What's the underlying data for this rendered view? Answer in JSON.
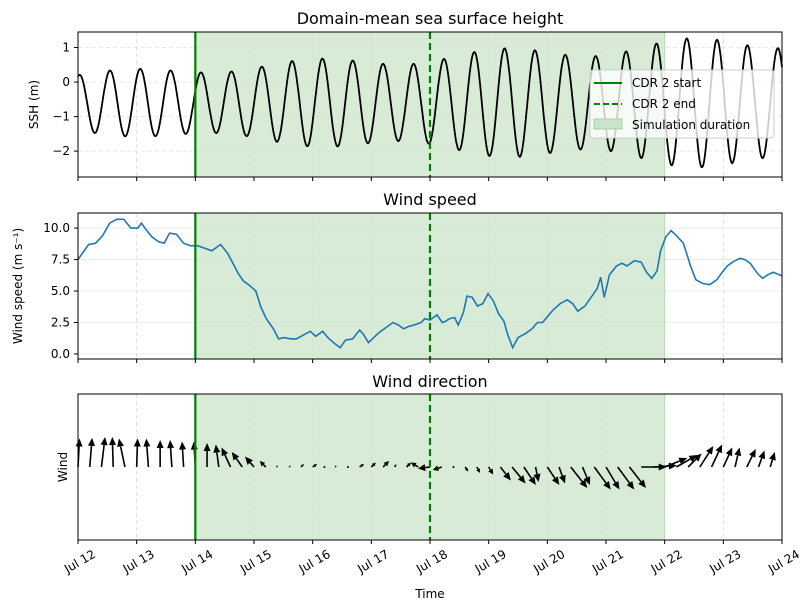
{
  "chart_data": [
    {
      "type": "line",
      "title": "Domain-mean sea surface height",
      "xlabel": "",
      "ylabel": "SSH (m)",
      "x_range": [
        "Jul 12",
        "Jul 24"
      ],
      "ylim": [
        -2.75,
        1.45
      ],
      "yticks": [
        1,
        0,
        -1,
        -2
      ],
      "ytick_labels": [
        "1",
        "0",
        "−1",
        "−2"
      ],
      "grid": true,
      "tide": {
        "mean": -0.6,
        "period_hours": 12.42,
        "amplitude_start": 0.8,
        "amplitude_end": 1.8
      },
      "series": [
        {
          "name": "",
          "color": "#000000",
          "description_values": "semi-diurnal oscillation, SSH range approx -1.65..0.10 on Jul 12 growing to approx -2.45..1.25 by Jul 24"
        }
      ],
      "markers": {
        "cdr2_start": "Jul 14",
        "cdr2_end": "Jul 18",
        "simulation_start": "Jul 14",
        "simulation_end": "Jul 22"
      },
      "legend": {
        "position": "upper-right",
        "entries": [
          {
            "label": "CDR 2 start",
            "style": "solid",
            "color": "#008000"
          },
          {
            "label": "CDR 2 end",
            "style": "dashed",
            "color": "#008000"
          },
          {
            "label": "Simulation duration",
            "style": "patch",
            "color": "#c9e4c9"
          }
        ]
      }
    },
    {
      "type": "line",
      "title": "Wind speed",
      "xlabel": "",
      "ylabel": "Wind speed (m s⁻¹)",
      "ylim": [
        -0.4,
        11.2
      ],
      "yticks": [
        0.0,
        2.5,
        5.0,
        7.5,
        10.0
      ],
      "ytick_labels": [
        "0.0",
        "2.5",
        "5.0",
        "7.5",
        "10.0"
      ],
      "grid": true,
      "series": [
        {
          "name": "",
          "color": "#1f77b4",
          "points": [
            [
              0.0,
              7.5
            ],
            [
              0.1,
              7.9
            ],
            [
              0.3,
              8.7
            ],
            [
              0.5,
              8.8
            ],
            [
              0.7,
              9.4
            ],
            [
              0.9,
              10.4
            ],
            [
              1.1,
              10.7
            ],
            [
              1.3,
              10.7
            ],
            [
              1.5,
              10.0
            ],
            [
              1.7,
              10.0
            ],
            [
              1.8,
              10.4
            ],
            [
              1.9,
              10.0
            ],
            [
              2.1,
              9.3
            ],
            [
              2.3,
              8.9
            ],
            [
              2.45,
              8.8
            ],
            [
              2.6,
              9.6
            ],
            [
              2.8,
              9.5
            ],
            [
              3.0,
              8.8
            ],
            [
              3.2,
              8.6
            ],
            [
              3.4,
              8.6
            ],
            [
              3.6,
              8.4
            ],
            [
              3.8,
              8.2
            ],
            [
              3.95,
              8.5
            ],
            [
              4.05,
              8.7
            ],
            [
              4.25,
              8.0
            ],
            [
              4.4,
              7.2
            ],
            [
              4.55,
              6.4
            ],
            [
              4.7,
              5.8
            ],
            [
              4.85,
              5.5
            ],
            [
              5.05,
              5.0
            ],
            [
              5.2,
              3.7
            ],
            [
              5.35,
              2.8
            ],
            [
              5.55,
              2.0
            ],
            [
              5.7,
              1.2
            ],
            [
              5.85,
              1.3
            ],
            [
              6.05,
              1.2
            ],
            [
              6.2,
              1.2
            ],
            [
              6.4,
              1.5
            ],
            [
              6.6,
              1.8
            ],
            [
              6.75,
              1.4
            ],
            [
              6.95,
              1.8
            ],
            [
              7.1,
              1.3
            ],
            [
              7.3,
              0.8
            ],
            [
              7.45,
              0.5
            ],
            [
              7.6,
              1.1
            ],
            [
              7.8,
              1.2
            ],
            [
              8.0,
              1.9
            ],
            [
              8.1,
              1.6
            ],
            [
              8.25,
              0.9
            ],
            [
              8.4,
              1.3
            ],
            [
              8.55,
              1.7
            ],
            [
              8.75,
              2.1
            ],
            [
              8.95,
              2.5
            ],
            [
              9.1,
              2.3
            ],
            [
              9.25,
              2.0
            ],
            [
              9.4,
              2.2
            ],
            [
              9.55,
              2.3
            ],
            [
              9.75,
              2.5
            ],
            [
              9.85,
              2.8
            ],
            [
              10.0,
              2.7
            ],
            [
              10.2,
              3.1
            ],
            [
              10.35,
              2.5
            ],
            [
              10.45,
              2.6
            ],
            [
              10.55,
              2.8
            ],
            [
              10.7,
              2.9
            ],
            [
              10.8,
              2.3
            ],
            [
              10.95,
              3.3
            ],
            [
              11.05,
              4.6
            ],
            [
              11.2,
              4.5
            ],
            [
              11.35,
              3.8
            ],
            [
              11.5,
              4.0
            ],
            [
              11.65,
              4.8
            ],
            [
              11.8,
              4.2
            ],
            [
              11.95,
              3.2
            ],
            [
              12.1,
              2.6
            ],
            [
              12.2,
              1.6
            ],
            [
              12.35,
              0.5
            ],
            [
              12.5,
              1.3
            ],
            [
              12.7,
              1.6
            ],
            [
              12.9,
              2.0
            ],
            [
              13.05,
              2.5
            ],
            [
              13.2,
              2.5
            ],
            [
              13.35,
              3.0
            ],
            [
              13.5,
              3.5
            ],
            [
              13.7,
              4.0
            ],
            [
              13.9,
              4.3
            ],
            [
              14.05,
              4.0
            ],
            [
              14.2,
              3.4
            ],
            [
              14.4,
              3.8
            ],
            [
              14.55,
              4.4
            ],
            [
              14.75,
              5.2
            ],
            [
              14.85,
              6.1
            ],
            [
              14.95,
              4.5
            ],
            [
              15.1,
              6.3
            ],
            [
              15.3,
              7.0
            ],
            [
              15.45,
              7.2
            ],
            [
              15.6,
              7.0
            ],
            [
              15.8,
              7.4
            ],
            [
              16.0,
              7.3
            ],
            [
              16.15,
              6.5
            ],
            [
              16.3,
              6.0
            ],
            [
              16.45,
              6.6
            ],
            [
              16.55,
              8.2
            ],
            [
              16.7,
              9.3
            ],
            [
              16.85,
              9.8
            ],
            [
              17.0,
              9.4
            ],
            [
              17.2,
              8.8
            ],
            [
              17.4,
              7.0
            ],
            [
              17.55,
              5.9
            ],
            [
              17.75,
              5.6
            ],
            [
              17.95,
              5.5
            ],
            [
              18.15,
              5.9
            ],
            [
              18.3,
              6.5
            ],
            [
              18.45,
              7.0
            ],
            [
              18.6,
              7.3
            ],
            [
              18.8,
              7.6
            ],
            [
              18.95,
              7.5
            ],
            [
              19.1,
              7.2
            ],
            [
              19.3,
              6.4
            ],
            [
              19.45,
              6.0
            ],
            [
              19.6,
              6.3
            ],
            [
              19.75,
              6.5
            ],
            [
              20.0,
              6.2
            ]
          ]
        }
      ],
      "x_units": "index of 0.6-day steps from Jul 12",
      "markers": {
        "cdr2_start": "Jul 14",
        "cdr2_end": "Jul 18",
        "simulation_end": "Jul 22"
      }
    },
    {
      "type": "quiver",
      "title": "Wind direction",
      "xlabel": "Time",
      "ylabel": "Wind",
      "yticks": [],
      "grid": true,
      "xtick_labels": [
        "Jul 12",
        "Jul 13",
        "Jul 14",
        "Jul 15",
        "Jul 16",
        "Jul 17",
        "Jul 18",
        "Jul 19",
        "Jul 20",
        "Jul 21",
        "Jul 22",
        "Jul 23",
        "Jul 24"
      ],
      "arrow_color": "#000000",
      "arrows": [
        [
          0.0,
          0.05,
          0.95
        ],
        [
          0.26,
          0.08,
          0.97
        ],
        [
          0.52,
          0.12,
          1.0
        ],
        [
          0.78,
          -0.03,
          1.0
        ],
        [
          1.04,
          -0.2,
          0.95
        ],
        [
          1.3,
          0.03,
          0.95
        ],
        [
          1.56,
          -0.07,
          0.95
        ],
        [
          1.82,
          0.0,
          0.9
        ],
        [
          2.08,
          -0.06,
          0.9
        ],
        [
          2.34,
          -0.05,
          0.85
        ],
        [
          2.6,
          -0.05,
          0.85
        ],
        [
          2.86,
          0.0,
          0.8
        ],
        [
          3.12,
          -0.1,
          0.75
        ],
        [
          3.38,
          -0.3,
          0.65
        ],
        [
          3.64,
          -0.35,
          0.5
        ],
        [
          3.9,
          -0.3,
          0.35
        ],
        [
          4.16,
          -0.2,
          0.2
        ],
        [
          4.42,
          -0.05,
          0.05
        ],
        [
          4.68,
          0.05,
          0.05
        ],
        [
          4.94,
          0.1,
          0.1
        ],
        [
          5.2,
          0.15,
          0.1
        ],
        [
          5.46,
          0.0,
          0.05
        ],
        [
          5.72,
          -0.05,
          0.05
        ],
        [
          5.98,
          0.0,
          0.05
        ],
        [
          6.24,
          0.15,
          0.1
        ],
        [
          6.5,
          0.15,
          0.15
        ],
        [
          6.76,
          0.2,
          0.2
        ],
        [
          7.02,
          0.05,
          0.1
        ],
        [
          7.28,
          0.15,
          0.15
        ],
        [
          7.54,
          -0.25,
          0.15
        ],
        [
          7.8,
          -0.4,
          -0.05
        ],
        [
          8.06,
          -0.3,
          -0.1
        ],
        [
          8.32,
          0.0,
          0.05
        ],
        [
          8.58,
          0.1,
          -0.15
        ],
        [
          8.84,
          0.1,
          -0.2
        ],
        [
          9.1,
          0.15,
          -0.25
        ],
        [
          9.36,
          0.35,
          -0.45
        ],
        [
          9.62,
          0.45,
          -0.55
        ],
        [
          9.88,
          0.4,
          -0.6
        ],
        [
          10.14,
          0.1,
          -0.5
        ],
        [
          10.4,
          0.4,
          -0.6
        ],
        [
          10.66,
          0.2,
          -0.55
        ],
        [
          10.92,
          0.55,
          -0.7
        ],
        [
          11.18,
          0.25,
          -0.6
        ],
        [
          11.44,
          0.55,
          -0.75
        ],
        [
          11.7,
          0.45,
          -0.75
        ],
        [
          11.96,
          0.55,
          -0.75
        ],
        [
          12.22,
          0.55,
          -0.7
        ],
        [
          12.48,
          0.85,
          0.0
        ],
        [
          12.74,
          0.8,
          0.05
        ],
        [
          13.0,
          0.75,
          0.3
        ],
        [
          13.26,
          0.7,
          0.4
        ],
        [
          13.52,
          0.45,
          0.45
        ],
        [
          13.78,
          0.45,
          0.7
        ],
        [
          14.04,
          0.35,
          0.75
        ],
        [
          14.3,
          0.3,
          0.65
        ],
        [
          14.56,
          0.15,
          0.65
        ],
        [
          14.82,
          0.3,
          0.6
        ],
        [
          15.08,
          0.2,
          0.55
        ],
        [
          15.34,
          0.15,
          0.5
        ]
      ],
      "arrow_units": "[x position in 0.2-day steps from Jul 12, u, v] normalized",
      "markers": {
        "cdr2_start": "Jul 14",
        "cdr2_end": "Jul 18",
        "simulation_end": "Jul 22"
      }
    }
  ],
  "colors": {
    "ssh_line": "#000000",
    "wind_line": "#1f77b4",
    "cdr": "#008000",
    "simulation_fill": "#c9e4c9",
    "grid": "#d9d9d9"
  }
}
